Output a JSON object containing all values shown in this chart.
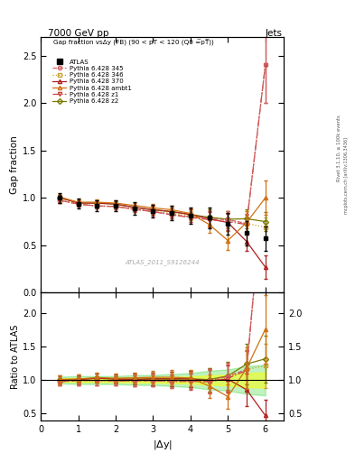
{
  "header_left": "7000 GeV pp",
  "header_right": "Jets",
  "title_main": "Gap fraction vsΔy (FB) (90 < pT < 120 (Q0 =̅pT̅))",
  "ylabel_main": "Gap fraction",
  "ylabel_ratio": "Ratio to ATLAS",
  "xlabel": "|$\\Delta$y|",
  "rivet_label": "Rivet 3.1.10, ≥ 100k events",
  "arxiv_label": "mcplots.cern.ch [arXiv:1306.3436]",
  "watermark": "ATLAS_2011_S9126244",
  "x_atlas": [
    0.5,
    1.0,
    1.5,
    2.0,
    2.5,
    3.0,
    3.5,
    4.0,
    4.5,
    5.0,
    5.5,
    6.0
  ],
  "y_atlas": [
    1.0,
    0.94,
    0.92,
    0.92,
    0.89,
    0.86,
    0.84,
    0.81,
    0.79,
    0.73,
    0.63,
    0.57
  ],
  "yerr_atlas": [
    0.05,
    0.055,
    0.055,
    0.055,
    0.065,
    0.065,
    0.075,
    0.085,
    0.11,
    0.115,
    0.13,
    0.13
  ],
  "x_mc": [
    0.5,
    1.0,
    1.5,
    2.0,
    2.5,
    3.0,
    3.5,
    4.0,
    4.5,
    5.0,
    5.5,
    6.0
  ],
  "y_345": [
    0.975,
    0.935,
    0.915,
    0.91,
    0.88,
    0.855,
    0.825,
    0.8,
    0.78,
    0.77,
    0.73,
    2.4
  ],
  "yerr_345": [
    0.03,
    0.03,
    0.03,
    0.03,
    0.03,
    0.04,
    0.04,
    0.05,
    0.08,
    0.09,
    0.1,
    0.4
  ],
  "y_346": [
    0.975,
    0.935,
    0.915,
    0.91,
    0.88,
    0.86,
    0.835,
    0.815,
    0.795,
    0.77,
    0.73,
    0.69
  ],
  "yerr_346": [
    0.03,
    0.03,
    0.03,
    0.03,
    0.03,
    0.04,
    0.04,
    0.05,
    0.08,
    0.09,
    0.1,
    0.1
  ],
  "y_370": [
    1.005,
    0.945,
    0.945,
    0.935,
    0.9,
    0.875,
    0.855,
    0.825,
    0.78,
    0.74,
    0.54,
    0.27
  ],
  "yerr_370": [
    0.03,
    0.03,
    0.03,
    0.03,
    0.03,
    0.04,
    0.04,
    0.05,
    0.08,
    0.09,
    0.1,
    0.12
  ],
  "y_ambt1": [
    1.01,
    0.955,
    0.955,
    0.945,
    0.92,
    0.895,
    0.875,
    0.835,
    0.72,
    0.55,
    0.74,
    1.0
  ],
  "yerr_ambt1": [
    0.03,
    0.03,
    0.03,
    0.03,
    0.03,
    0.04,
    0.04,
    0.05,
    0.09,
    0.1,
    0.12,
    0.18
  ],
  "y_z1": [
    0.975,
    0.935,
    0.915,
    0.91,
    0.88,
    0.855,
    0.82,
    0.795,
    0.77,
    0.75,
    0.72,
    2.4
  ],
  "yerr_z1": [
    0.03,
    0.03,
    0.03,
    0.03,
    0.03,
    0.04,
    0.04,
    0.05,
    0.08,
    0.09,
    0.1,
    0.4
  ],
  "y_z2": [
    1.0,
    0.95,
    0.945,
    0.935,
    0.9,
    0.875,
    0.855,
    0.825,
    0.795,
    0.775,
    0.78,
    0.75
  ],
  "yerr_z2": [
    0.03,
    0.03,
    0.03,
    0.03,
    0.03,
    0.04,
    0.04,
    0.05,
    0.08,
    0.09,
    0.1,
    0.1
  ],
  "color_atlas": "#000000",
  "color_345": "#d06060",
  "color_346": "#c8a030",
  "color_370": "#b02020",
  "color_ambt1": "#d07010",
  "color_z1": "#c84040",
  "color_z2": "#7a7a00",
  "xlim": [
    0,
    6.5
  ],
  "ylim_main": [
    0.0,
    2.7
  ],
  "ylim_ratio": [
    0.4,
    2.3
  ],
  "yticks_main": [
    0.0,
    0.5,
    1.0,
    1.5,
    2.0,
    2.5
  ],
  "yticks_ratio": [
    0.5,
    1.0,
    1.5,
    2.0
  ]
}
